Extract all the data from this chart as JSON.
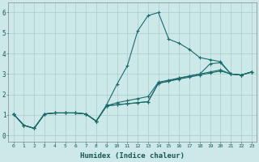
{
  "xlabel": "Humidex (Indice chaleur)",
  "background_color": "#cce8e8",
  "grid_color": "#aacccc",
  "line_color": "#1a6b6b",
  "xlim": [
    -0.5,
    23.5
  ],
  "ylim": [
    -0.3,
    6.5
  ],
  "xticks": [
    0,
    1,
    2,
    3,
    4,
    5,
    6,
    7,
    8,
    9,
    10,
    11,
    12,
    13,
    14,
    15,
    16,
    17,
    18,
    19,
    20,
    21,
    22,
    23
  ],
  "yticks": [
    0,
    1,
    2,
    3,
    4,
    5,
    6
  ],
  "series": [
    [
      1.05,
      0.5,
      0.35,
      1.05,
      1.1,
      1.1,
      1.1,
      1.05,
      0.7,
      1.5,
      2.5,
      3.4,
      5.1,
      5.85,
      6.0,
      4.7,
      4.5,
      4.2,
      3.8,
      3.7,
      3.6,
      3.0,
      2.95,
      3.1
    ],
    [
      1.05,
      0.5,
      0.35,
      1.05,
      1.1,
      1.1,
      1.1,
      1.05,
      0.7,
      1.45,
      1.5,
      1.55,
      1.6,
      1.65,
      2.55,
      2.65,
      2.8,
      2.9,
      3.0,
      3.5,
      3.55,
      3.0,
      2.95,
      3.1
    ],
    [
      1.05,
      0.5,
      0.35,
      1.05,
      1.1,
      1.1,
      1.1,
      1.05,
      0.7,
      1.45,
      1.5,
      1.55,
      1.6,
      1.65,
      2.55,
      2.65,
      2.75,
      2.85,
      2.95,
      3.05,
      3.15,
      3.0,
      2.95,
      3.1
    ],
    [
      1.05,
      0.5,
      0.35,
      1.05,
      1.1,
      1.1,
      1.1,
      1.05,
      0.7,
      1.45,
      1.6,
      1.7,
      1.8,
      1.9,
      2.6,
      2.7,
      2.8,
      2.9,
      3.0,
      3.1,
      3.2,
      3.0,
      2.95,
      3.1
    ]
  ]
}
